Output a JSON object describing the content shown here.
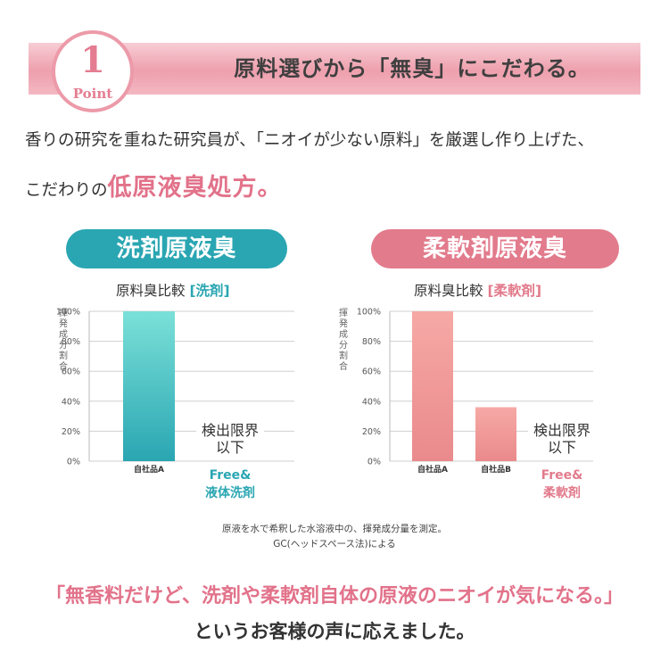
{
  "banner": {
    "badge_number": "1",
    "badge_word": "Point",
    "title": "原料選びから「無臭」にこだわる。"
  },
  "intro": {
    "line1": "香りの研究を重ねた研究員が、「ニオイが少ない原料」を厳選し作り上げた、",
    "line2_prefix": "こだわりの",
    "line2_highlight": "低原液臭処方。"
  },
  "colors": {
    "teal": "#2aa6b2",
    "pink": "#e27b8c",
    "teal_bar": "#5fd0cc",
    "pink_bar": "#f4a5a3",
    "pink_accent": "#e2728a"
  },
  "chart_data": [
    {
      "type": "bar",
      "panel_title": "洗剤原液臭",
      "subtitle": "原料臭比較",
      "subtitle_tag": "[洗剤]",
      "ylabel": "揮発成分割合",
      "yticks": [
        "0%",
        "20%",
        "40%",
        "60%",
        "80%",
        "100%"
      ],
      "ylim": [
        0,
        100
      ],
      "categories": [
        "自社品A"
      ],
      "values": [
        100
      ],
      "free_label": "Free&\n液体洗剤",
      "free_note": "検出限界\n以下",
      "grid": true
    },
    {
      "type": "bar",
      "panel_title": "柔軟剤原液臭",
      "subtitle": "原料臭比較",
      "subtitle_tag": "[柔軟剤]",
      "ylabel": "揮発成分割合",
      "yticks": [
        "0%",
        "20%",
        "40%",
        "60%",
        "80%",
        "100%"
      ],
      "ylim": [
        0,
        100
      ],
      "categories": [
        "自社品A",
        "自社品B"
      ],
      "values": [
        100,
        36
      ],
      "free_label": "Free&\n柔軟剤",
      "free_note": "検出限界\n以下",
      "grid": true
    }
  ],
  "note": {
    "line1": "原液を水で希釈した水溶液中の、揮発成分量を測定。",
    "line2": "GC(ヘッドスペース法)による"
  },
  "bottom": {
    "line1": "「無香料だけど、洗剤や柔軟剤自体の原液のニオイが気になる。」",
    "line2": "というお客様の声に応えました。"
  }
}
